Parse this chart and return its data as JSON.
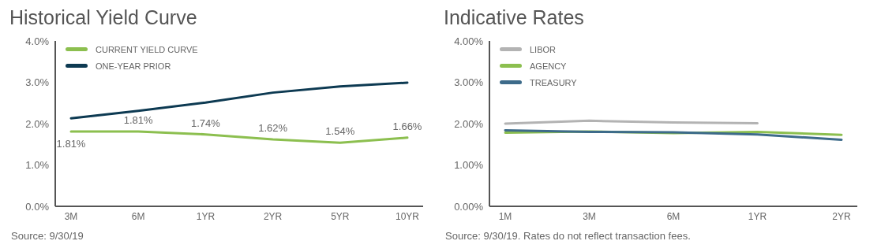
{
  "chart_data": [
    {
      "type": "line",
      "title": "Historical Yield Curve",
      "categories": [
        "3M",
        "6M",
        "1YR",
        "2YR",
        "5YR",
        "10YR"
      ],
      "series": [
        {
          "name": "CURRENT YIELD CURVE",
          "color": "#8cbf4f",
          "values": [
            1.81,
            1.81,
            1.74,
            1.62,
            1.54,
            1.66
          ],
          "value_labels": [
            "1.81%",
            "1.81%",
            "1.74%",
            "1.62%",
            "1.54%",
            "1.66%"
          ]
        },
        {
          "name": "ONE-YEAR PRIOR",
          "color": "#0d3a52",
          "values": [
            2.13,
            2.31,
            2.51,
            2.75,
            2.9,
            2.99
          ]
        }
      ],
      "ylim": [
        0,
        4
      ],
      "yticks": [
        {
          "value": 0,
          "label": "0.0%"
        },
        {
          "value": 1,
          "label": "1.0%"
        },
        {
          "value": 2,
          "label": "2.0%"
        },
        {
          "value": 3,
          "label": "3.0%"
        },
        {
          "value": 4,
          "label": "4.0%"
        }
      ],
      "grid": false,
      "legend": "top left",
      "marker": "none",
      "line_style": "solid",
      "annotations": [
        "Source: 9/30/19"
      ]
    },
    {
      "type": "line",
      "title": "Indicative Rates",
      "categories": [
        "1M",
        "3M",
        "6M",
        "1YR",
        "2YR"
      ],
      "series": [
        {
          "name": "LIBOR",
          "color": "#b3b3b3",
          "values": [
            2.0,
            2.07,
            2.03,
            2.01,
            null
          ]
        },
        {
          "name": "AGENCY",
          "color": "#8cbf4f",
          "values": [
            1.78,
            1.81,
            1.77,
            1.8,
            1.73
          ]
        },
        {
          "name": "TREASURY",
          "color": "#3d6b8a",
          "values": [
            1.84,
            1.8,
            1.79,
            1.74,
            1.61
          ]
        }
      ],
      "ylim": [
        0,
        4
      ],
      "yticks": [
        {
          "value": 0,
          "label": "0.00%"
        },
        {
          "value": 1,
          "label": "1.00%"
        },
        {
          "value": 2,
          "label": "2.00%"
        },
        {
          "value": 3,
          "label": "3.00%"
        },
        {
          "value": 4,
          "label": "4.00%"
        }
      ],
      "grid": false,
      "legend": "top left",
      "marker": "none",
      "line_style": "solid",
      "annotations": [
        "Source: 9/30/19. Rates do not reflect transaction fees."
      ]
    }
  ]
}
